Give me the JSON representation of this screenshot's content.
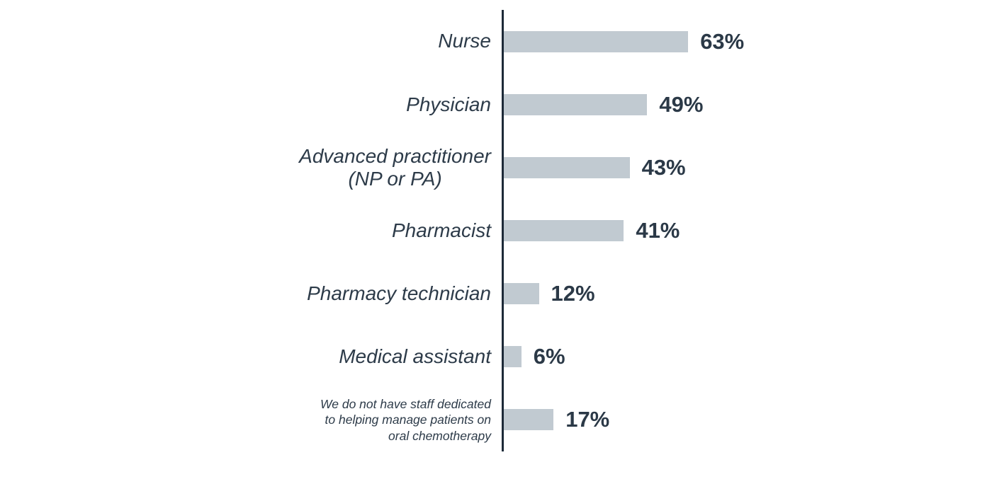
{
  "page": {
    "background": "#ffffff"
  },
  "chart_data": {
    "type": "bar",
    "orientation": "horizontal",
    "title": "",
    "categories": [
      "Nurse",
      "Physician",
      "Advanced practitioner (NP or PA)",
      "Pharmacist",
      "Pharmacy technician",
      "Medical assistant",
      "We do not have staff dedicated to helping manage patients on oral chemotherapy"
    ],
    "values": [
      63,
      49,
      43,
      41,
      12,
      6,
      17
    ],
    "value_labels": [
      "63%",
      "49%",
      "43%",
      "41%",
      "12%",
      "6%",
      "17%"
    ],
    "xlim": [
      0,
      100
    ],
    "grid": false,
    "legend": "none",
    "bar_color": "#c1cad1",
    "axis_color": "#1d2a38",
    "label_color": "#2d3b49",
    "value_color": "#2b3947",
    "rows": [
      {
        "lines": [
          "Nurse"
        ],
        "value": 63,
        "value_label": "63%",
        "small": false,
        "align": "right"
      },
      {
        "lines": [
          "Physician"
        ],
        "value": 49,
        "value_label": "49%",
        "small": false,
        "align": "right"
      },
      {
        "lines": [
          "Advanced practitioner",
          "(NP or PA)"
        ],
        "value": 43,
        "value_label": "43%",
        "small": false,
        "align": "center"
      },
      {
        "lines": [
          "Pharmacist"
        ],
        "value": 41,
        "value_label": "41%",
        "small": false,
        "align": "right"
      },
      {
        "lines": [
          "Pharmacy technician"
        ],
        "value": 12,
        "value_label": "12%",
        "small": false,
        "align": "right"
      },
      {
        "lines": [
          "Medical assistant"
        ],
        "value": 6,
        "value_label": "6%",
        "small": false,
        "align": "right"
      },
      {
        "lines": [
          "We do not have staff dedicated",
          "to helping manage patients on",
          "oral chemotherapy"
        ],
        "value": 17,
        "value_label": "17%",
        "small": true,
        "align": "right"
      }
    ]
  }
}
